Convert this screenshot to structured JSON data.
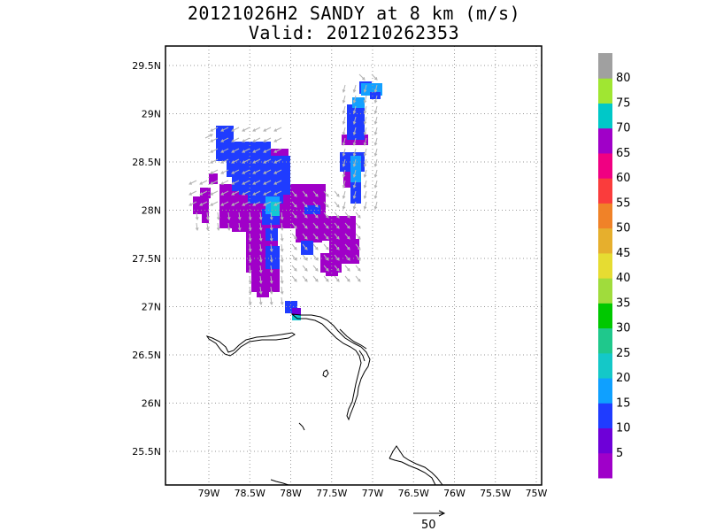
{
  "title": {
    "line1": "20121026H2 SANDY at 8 km (m/s)",
    "line2": "Valid: 201210262353"
  },
  "map": {
    "lon_labels": [
      "79W",
      "78.5W",
      "78W",
      "77.5W",
      "77W",
      "76.5W",
      "76W",
      "75.5W",
      "75W"
    ],
    "lon_values": [
      -79,
      -78.5,
      -78,
      -77.5,
      -77,
      -76.5,
      -76,
      -75.5,
      -75
    ],
    "lat_labels": [
      "29.5N",
      "29N",
      "28.5N",
      "28N",
      "27.5N",
      "27N",
      "26.5N",
      "26N",
      "25.5N"
    ],
    "lat_values": [
      29.5,
      29,
      28.5,
      28,
      27.5,
      27,
      26.5,
      26,
      25.5
    ],
    "lon_range": [
      -79.45,
      -75.05
    ],
    "lat_range": [
      25.15,
      29.75
    ],
    "grid": "dotted",
    "coastline_color": "#000000"
  },
  "colorbar": {
    "labels": [
      "5",
      "10",
      "15",
      "20",
      "25",
      "30",
      "35",
      "40",
      "45",
      "50",
      "55",
      "60",
      "65",
      "70",
      "75",
      "80"
    ],
    "colors": [
      "#9f00c9",
      "#6e00d8",
      "#1f3cff",
      "#0fa0ff",
      "#14c8c8",
      "#1fc88c",
      "#00c800",
      "#a0dc3c",
      "#e6dc32",
      "#e6af2d",
      "#f08228",
      "#fa3c3c",
      "#f00082",
      "#a000c8",
      "#00c8c8",
      "#a0e632",
      "#a0a0a0"
    ]
  },
  "scale_vector": {
    "label": "50"
  },
  "wind_field": {
    "color_levels": {
      "purple": "#a000c8",
      "violet": "#6e00dc",
      "blue": "#1f3cff",
      "lightblue": "#14a0ff",
      "cyan": "#14c8d2"
    }
  }
}
